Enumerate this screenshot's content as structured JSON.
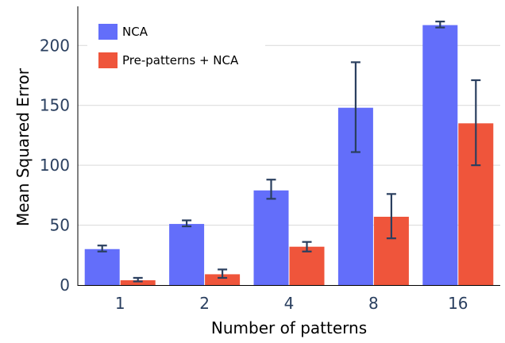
{
  "chart_data": {
    "type": "bar",
    "title": "",
    "xlabel": "Number of patterns",
    "ylabel": "Mean Squared Error",
    "categories": [
      "1",
      "2",
      "4",
      "8",
      "16"
    ],
    "ylim": [
      0,
      230
    ],
    "yticks": [
      0,
      50,
      100,
      150,
      200
    ],
    "grid": true,
    "legend_position": "top-left",
    "series": [
      {
        "name": "NCA",
        "color": "#636efa",
        "values": [
          30,
          51,
          79,
          148,
          217
        ],
        "error_low": [
          28,
          49,
          72,
          111,
          215
        ],
        "error_high": [
          33,
          54,
          88,
          186,
          220
        ]
      },
      {
        "name": "Pre-patterns + NCA",
        "color": "#ef553b",
        "values": [
          4,
          9,
          32,
          57,
          135
        ],
        "error_low": [
          3,
          6,
          28,
          39,
          100
        ],
        "error_high": [
          6,
          13,
          36,
          76,
          171
        ]
      }
    ]
  }
}
